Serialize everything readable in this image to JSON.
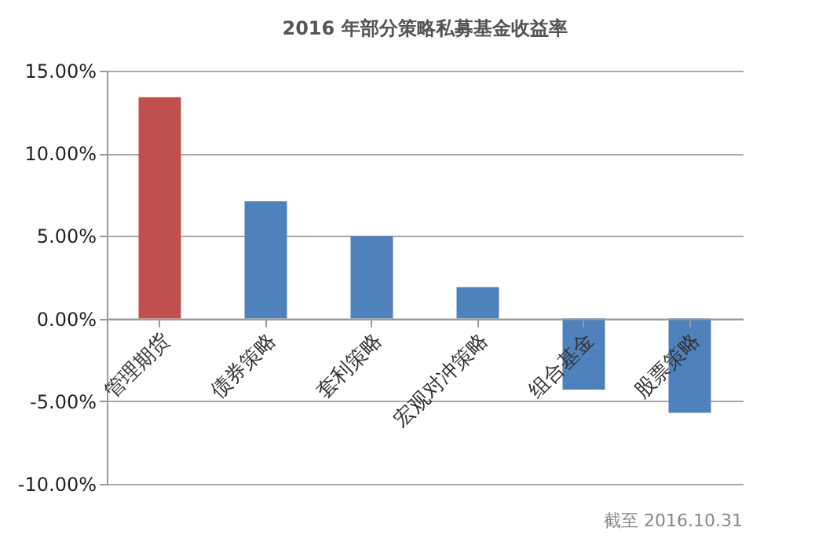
{
  "chart_data": {
    "type": "bar",
    "title": "2016 年部分策略私募基金收益率",
    "categories": [
      "管理期货",
      "债券策略",
      "套利策略",
      "宏观对冲策略",
      "组合基金",
      "股票策略"
    ],
    "values": [
      13.4,
      7.1,
      5.0,
      1.9,
      -4.3,
      -5.7
    ],
    "colors": [
      "#c0504d",
      "#4f81bd",
      "#4f81bd",
      "#4f81bd",
      "#4f81bd",
      "#4f81bd"
    ],
    "ylim": [
      -10,
      15
    ],
    "yticks": [
      {
        "value": -10,
        "label": "-10.00%"
      },
      {
        "value": -5,
        "label": "-5.00%"
      },
      {
        "value": 0,
        "label": "0.00%"
      },
      {
        "value": 5,
        "label": "5.00%"
      },
      {
        "value": 10,
        "label": "10.00%"
      },
      {
        "value": 15,
        "label": "15.00%"
      }
    ],
    "grid": "y",
    "annotations": [
      "截至 2016.10.31"
    ]
  }
}
